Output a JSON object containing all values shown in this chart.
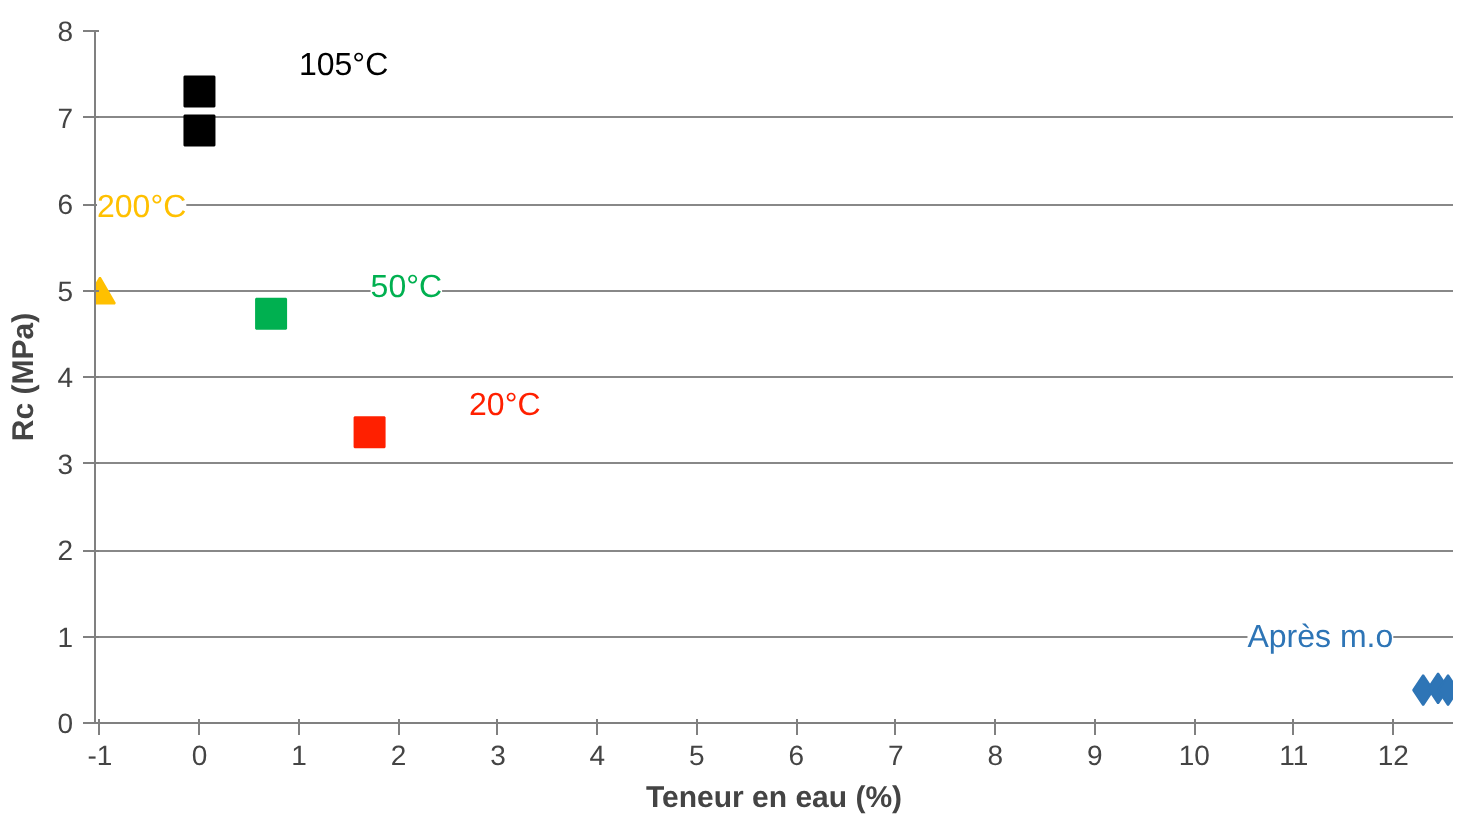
{
  "chart_data": {
    "type": "scatter",
    "xlabel": "Teneur en eau (%)",
    "ylabel": "Rc (MPa)",
    "xlim": [
      -1.05,
      12.6
    ],
    "ylim": [
      0,
      8
    ],
    "xticks": [
      -1,
      0,
      1,
      2,
      3,
      4,
      5,
      6,
      7,
      8,
      9,
      10,
      11,
      12
    ],
    "yticks": [
      0,
      1,
      2,
      3,
      4,
      5,
      6,
      7,
      8
    ],
    "grid": "y",
    "series": [
      {
        "name": "105°C",
        "color": "#000000",
        "marker": "square",
        "x": [
          0,
          0
        ],
        "values": [
          7.3,
          6.85
        ]
      },
      {
        "name": "200°C",
        "color": "#ffc000",
        "marker": "triangle",
        "x": [
          -1
        ],
        "values": [
          4.95
        ]
      },
      {
        "name": "50°C",
        "color": "#00b050",
        "marker": "square",
        "x": [
          0.72
        ],
        "values": [
          4.73
        ]
      },
      {
        "name": "20°C",
        "color": "#ff2000",
        "marker": "square",
        "x": [
          1.71
        ],
        "values": [
          3.36
        ]
      },
      {
        "name": "Après m.o",
        "color": "#2e75b6",
        "marker": "diamond",
        "x": [
          12.3,
          12.45,
          12.55
        ],
        "values": [
          0.38,
          0.4,
          0.38
        ]
      }
    ]
  }
}
